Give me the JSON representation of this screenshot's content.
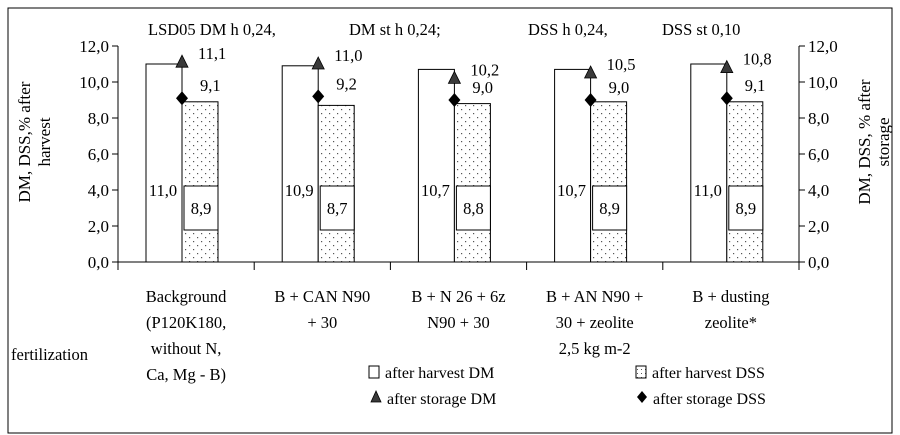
{
  "chart_data": {
    "type": "bar",
    "categories": [
      [
        "Background",
        "(P120K180,",
        "without N,",
        "Ca, Mg - B)"
      ],
      [
        "B + CAN N90",
        "+ 30"
      ],
      [
        "B + N 26 + 6z",
        "N90 + 30"
      ],
      [
        "B + AN N90 +",
        "30 + zeolite",
        "2,5 kg m-2"
      ],
      [
        "B + dusting",
        "zeolite*"
      ]
    ],
    "series": [
      {
        "name": "after harvest DM",
        "values": [
          11.0,
          10.9,
          10.7,
          10.7,
          11.0
        ],
        "labels": [
          "11,0",
          "10,9",
          "10,7",
          "10,7",
          "11,0"
        ]
      },
      {
        "name": "after harvest DSS",
        "values": [
          8.9,
          8.7,
          8.8,
          8.9,
          8.9
        ],
        "labels": [
          "8,9",
          "8,7",
          "8,8",
          "8,9",
          "8,9"
        ]
      },
      {
        "name": "after storage  DM",
        "values": [
          11.1,
          11.0,
          10.2,
          10.5,
          10.8
        ],
        "labels": [
          "11,1",
          "11,0",
          "10,2",
          "10,5",
          "10,8"
        ]
      },
      {
        "name": "after storage  DSS",
        "values": [
          9.1,
          9.2,
          9.0,
          9.0,
          9.1
        ],
        "labels": [
          "9,1",
          "9,2",
          "9,0",
          "9,0",
          "9,1"
        ]
      }
    ],
    "ylim": [
      0,
      12
    ],
    "ytick_labels": [
      "0,0",
      "2,0",
      "4,0",
      "6,0",
      "8,0",
      "10,0",
      "12,0"
    ],
    "ylabel_left": [
      "DM, DSS,% after",
      "harvest"
    ],
    "ylabel_right": [
      "DM, DSS, % after",
      "storage"
    ],
    "xlabel": "fertilization",
    "annotations": [
      "LSD05 DM h 0,24,",
      "DM st  h 0,24;",
      "DSS h 0,24,",
      "DSS st 0,10"
    ],
    "legend": "bottom",
    "grid": false
  }
}
